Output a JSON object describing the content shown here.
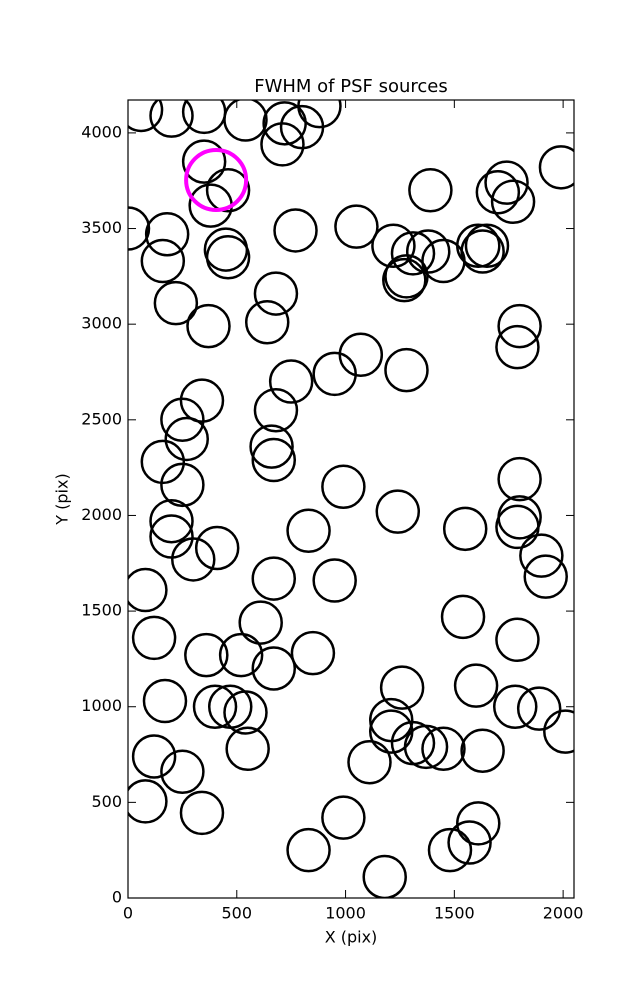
{
  "chart_data": {
    "type": "scatter",
    "title": "FWHM of PSF sources",
    "x_label": "X (pix)",
    "y_label": "Y (pix)",
    "xlim": [
      0,
      2050
    ],
    "ylim": [
      0,
      4172
    ],
    "xticks": [
      0,
      500,
      1000,
      1500,
      2000
    ],
    "yticks": [
      0,
      500,
      1000,
      1500,
      2000,
      2500,
      3000,
      3500,
      4000
    ],
    "grid": false,
    "marker": "open-circle",
    "series": [
      {
        "color": "#000000",
        "x": [
          80,
          120,
          250,
          340,
          170,
          120,
          80,
          360,
          400,
          470,
          540,
          550,
          520,
          610,
          670,
          850,
          670,
          950,
          300,
          410,
          200,
          200,
          250,
          160,
          270,
          250,
          340,
          660,
          670,
          680,
          750,
          950,
          1070,
          1280,
          370,
          220,
          640,
          680,
          160,
          180,
          450,
          460,
          770,
          0,
          380,
          460,
          350,
          710,
          720,
          800,
          540,
          350,
          200,
          60,
          880,
          1050,
          1220,
          1380,
          1310,
          1280,
          1270,
          1450,
          1390,
          1610,
          1630,
          1650,
          1740,
          1700,
          1770,
          1990,
          1800,
          1790,
          1800,
          1800,
          1790,
          1900,
          1920,
          1240,
          1550,
          990,
          830,
          1540,
          1790,
          1260,
          1600,
          1780,
          1890,
          2010,
          1210,
          1210,
          1310,
          1370,
          1450,
          1630,
          1110,
          990,
          830,
          1180,
          1480,
          1570,
          1610
        ],
        "values": [
          505,
          740,
          660,
          445,
          1030,
          1360,
          1610,
          1270,
          1000,
          1000,
          970,
          780,
          1270,
          1440,
          1200,
          1280,
          1670,
          1660,
          1770,
          1830,
          1890,
          1970,
          2160,
          2280,
          2400,
          2500,
          2600,
          2360,
          2290,
          2550,
          2700,
          2740,
          2840,
          2760,
          2990,
          3110,
          3010,
          3160,
          3330,
          3470,
          3390,
          3350,
          3490,
          3500,
          3620,
          3700,
          3850,
          3940,
          4050,
          4030,
          4070,
          4110,
          4090,
          4120,
          4140,
          3510,
          3410,
          3380,
          3370,
          3250,
          3230,
          3330,
          3700,
          3410,
          3380,
          3410,
          3740,
          3690,
          3640,
          3820,
          2990,
          2880,
          2190,
          1990,
          1940,
          1790,
          1680,
          2020,
          1930,
          2150,
          1920,
          1470,
          1350,
          1100,
          1110,
          1000,
          990,
          870,
          930,
          870,
          810,
          790,
          780,
          770,
          710,
          420,
          250,
          110,
          250,
          290,
          390
        ]
      },
      {
        "color": "#ff00ff",
        "x": [
          405
        ],
        "values": [
          3754
        ]
      }
    ]
  }
}
